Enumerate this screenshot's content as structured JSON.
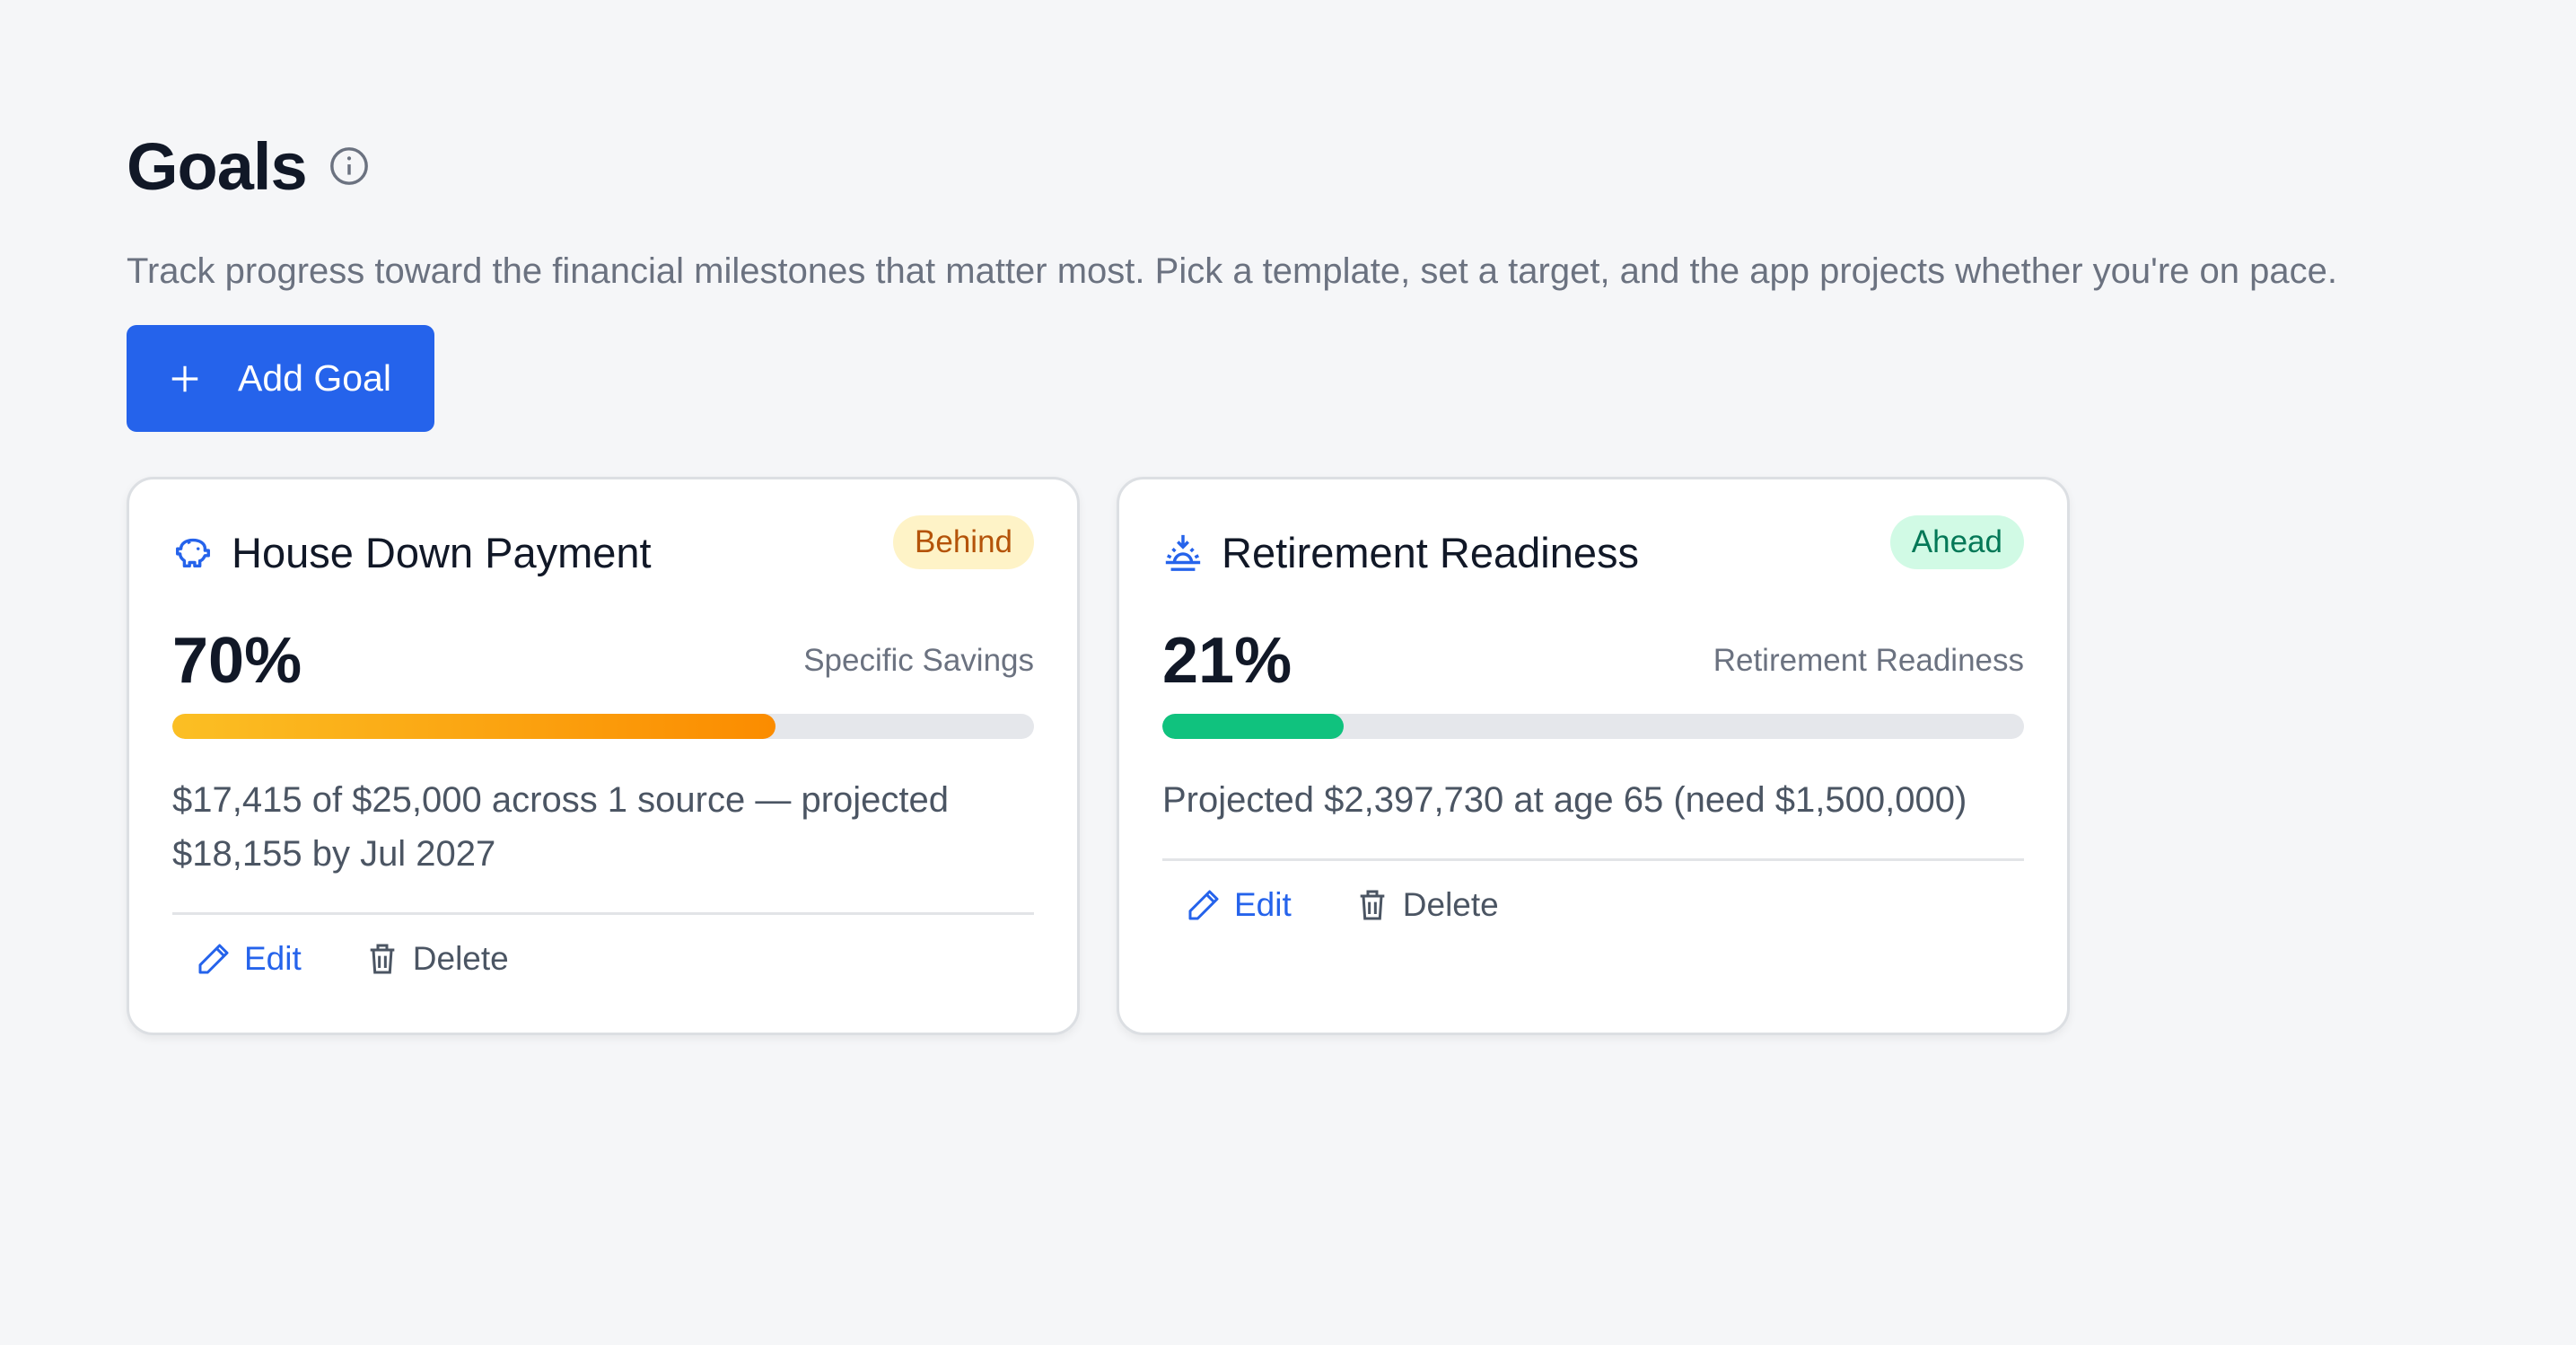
{
  "header": {
    "title": "Goals",
    "description": "Track progress toward the financial milestones that matter most. Pick a template, set a target, and the app projects whether you're on pace."
  },
  "add_button": {
    "label": "Add Goal"
  },
  "goals": [
    {
      "name": "House Down Payment",
      "status": "Behind",
      "progress": {
        "value": 70,
        "label": "70%"
      },
      "template": "Specific Savings",
      "summary": "$17,415 of $25,000 across 1 source — projected $18,155 by Jul 2027",
      "actions": [
        "Edit",
        "Delete"
      ]
    },
    {
      "name": "Retirement Readiness",
      "status": "Ahead",
      "progress": {
        "value": 21,
        "label": "21%"
      },
      "template": "Retirement Readiness",
      "summary": "Projected $2,397,730 at age 65 (need $1,500,000)",
      "actions": [
        "Edit",
        "Delete"
      ]
    }
  ]
}
